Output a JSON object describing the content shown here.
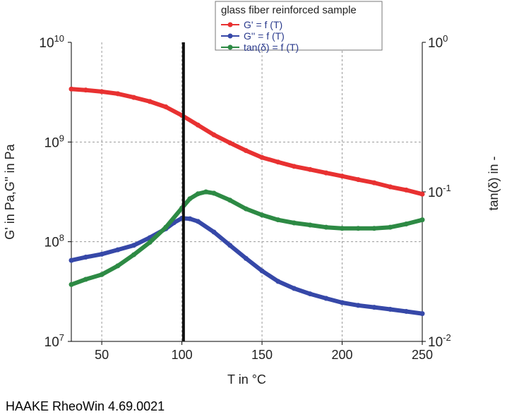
{
  "footer_text": "HAAKE RheoWin 4.69.0021",
  "chart_data": {
    "type": "line",
    "legend_title": "glass fiber reinforced sample",
    "legend_position": "top",
    "xlabel": "T in °C",
    "ylabel_left": "G' in Pa,G'' in Pa",
    "ylabel_right": "tan(δ) in -",
    "xlim": [
      31,
      250
    ],
    "ylim_left": [
      10000000,
      10000000000
    ],
    "ylim_right": [
      0.01,
      1
    ],
    "y_scale": "log",
    "grid": true,
    "x_ticks": [
      {
        "value": 50,
        "label": "50"
      },
      {
        "value": 100,
        "label": "100"
      },
      {
        "value": 150,
        "label": "150"
      },
      {
        "value": 200,
        "label": "200"
      },
      {
        "value": 250,
        "label": "250"
      }
    ],
    "y_left_ticks": [
      {
        "value": 10000000,
        "base": "10",
        "exp": "7"
      },
      {
        "value": 100000000,
        "base": "10",
        "exp": "8"
      },
      {
        "value": 1000000000,
        "base": "10",
        "exp": "9"
      },
      {
        "value": 10000000000,
        "base": "10",
        "exp": "10"
      }
    ],
    "y_right_ticks": [
      {
        "value": 0.01,
        "base": "10",
        "exp": "-2"
      },
      {
        "value": 0.1,
        "base": "10",
        "exp": "-1"
      },
      {
        "value": 1,
        "base": "10",
        "exp": "0"
      }
    ],
    "vertical_marker_x": 101,
    "series": [
      {
        "name": "G' = f (T)",
        "color": "#e83131",
        "axis": "left",
        "x": [
          31,
          40,
          50,
          60,
          70,
          80,
          90,
          100,
          110,
          120,
          130,
          140,
          150,
          160,
          170,
          180,
          190,
          200,
          210,
          220,
          230,
          240,
          250
        ],
        "y": [
          3400000000,
          3320000000,
          3200000000,
          3050000000,
          2800000000,
          2550000000,
          2250000000,
          1850000000,
          1480000000,
          1180000000,
          980000000,
          820000000,
          700000000,
          630000000,
          570000000,
          530000000,
          490000000,
          455000000,
          420000000,
          390000000,
          355000000,
          330000000,
          300000000
        ]
      },
      {
        "name": "G'' = f (T)",
        "color": "#3648a8",
        "axis": "left",
        "x": [
          31,
          40,
          50,
          60,
          70,
          80,
          90,
          95,
          100,
          105,
          110,
          120,
          130,
          140,
          150,
          160,
          170,
          180,
          190,
          200,
          210,
          220,
          230,
          240,
          250
        ],
        "y": [
          65000000,
          70000000,
          75000000,
          83000000,
          92000000,
          110000000,
          135000000,
          155000000,
          172000000,
          170000000,
          160000000,
          125000000,
          92000000,
          68000000,
          51000000,
          40000000,
          34000000,
          30000000,
          27000000,
          24500000,
          23000000,
          22000000,
          21000000,
          20000000,
          19000000
        ]
      },
      {
        "name": "tan(δ) = f (T)",
        "color": "#2d8a44",
        "axis": "right",
        "x": [
          31,
          40,
          50,
          60,
          70,
          80,
          90,
          100,
          105,
          110,
          115,
          120,
          130,
          140,
          150,
          160,
          170,
          180,
          190,
          200,
          210,
          220,
          230,
          240,
          250
        ],
        "y": [
          0.024,
          0.026,
          0.028,
          0.032,
          0.038,
          0.046,
          0.058,
          0.078,
          0.09,
          0.097,
          0.1,
          0.098,
          0.088,
          0.077,
          0.07,
          0.065,
          0.062,
          0.06,
          0.058,
          0.057,
          0.057,
          0.057,
          0.058,
          0.061,
          0.065
        ]
      }
    ]
  }
}
